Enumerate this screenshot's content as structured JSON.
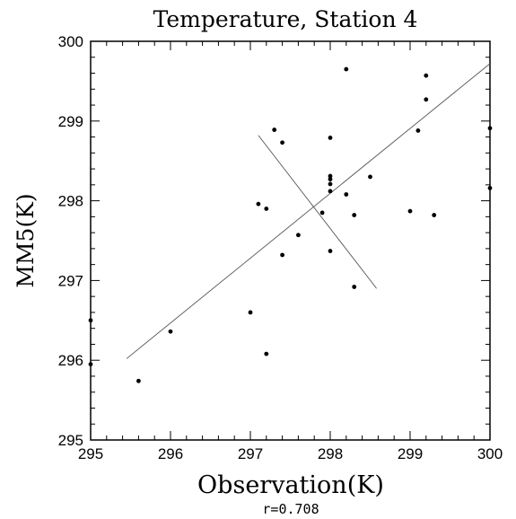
{
  "chart_data": {
    "type": "scatter",
    "title": "Temperature, Station 4",
    "xlabel": "Observation(K)",
    "ylabel": "MM5(K)",
    "annotation": "r=0.708",
    "xlim": [
      295,
      300
    ],
    "ylim": [
      295,
      300
    ],
    "xticks": [
      "295",
      "296",
      "297",
      "298",
      "299",
      "300"
    ],
    "yticks": [
      "295",
      "296",
      "297",
      "298",
      "299",
      "300"
    ],
    "grid": false,
    "colors": {
      "points": "#000000",
      "lines": "#555555",
      "axes": "#000000"
    },
    "points": [
      {
        "x": 295.0,
        "y": 296.5
      },
      {
        "x": 295.0,
        "y": 295.95
      },
      {
        "x": 295.6,
        "y": 295.74
      },
      {
        "x": 296.0,
        "y": 296.36
      },
      {
        "x": 297.0,
        "y": 296.6
      },
      {
        "x": 297.2,
        "y": 296.08
      },
      {
        "x": 297.1,
        "y": 297.96
      },
      {
        "x": 297.2,
        "y": 297.9
      },
      {
        "x": 297.3,
        "y": 298.89
      },
      {
        "x": 297.4,
        "y": 298.73
      },
      {
        "x": 297.4,
        "y": 297.32
      },
      {
        "x": 297.6,
        "y": 297.57
      },
      {
        "x": 297.9,
        "y": 297.85
      },
      {
        "x": 298.0,
        "y": 298.79
      },
      {
        "x": 298.0,
        "y": 298.31
      },
      {
        "x": 298.0,
        "y": 298.27
      },
      {
        "x": 298.0,
        "y": 298.21
      },
      {
        "x": 298.0,
        "y": 298.12
      },
      {
        "x": 298.0,
        "y": 297.37
      },
      {
        "x": 298.2,
        "y": 299.65
      },
      {
        "x": 298.2,
        "y": 298.08
      },
      {
        "x": 298.3,
        "y": 297.82
      },
      {
        "x": 298.3,
        "y": 296.92
      },
      {
        "x": 298.5,
        "y": 298.3
      },
      {
        "x": 299.0,
        "y": 297.87
      },
      {
        "x": 299.1,
        "y": 298.88
      },
      {
        "x": 299.2,
        "y": 299.57
      },
      {
        "x": 299.2,
        "y": 299.27
      },
      {
        "x": 299.3,
        "y": 297.82
      },
      {
        "x": 300.0,
        "y": 298.91
      },
      {
        "x": 300.0,
        "y": 298.16
      }
    ],
    "lines": [
      {
        "x1": 295.45,
        "y1": 296.02,
        "x2": 300.0,
        "y2": 299.72
      },
      {
        "x1": 297.1,
        "y1": 298.82,
        "x2": 298.58,
        "y2": 296.9
      }
    ]
  }
}
